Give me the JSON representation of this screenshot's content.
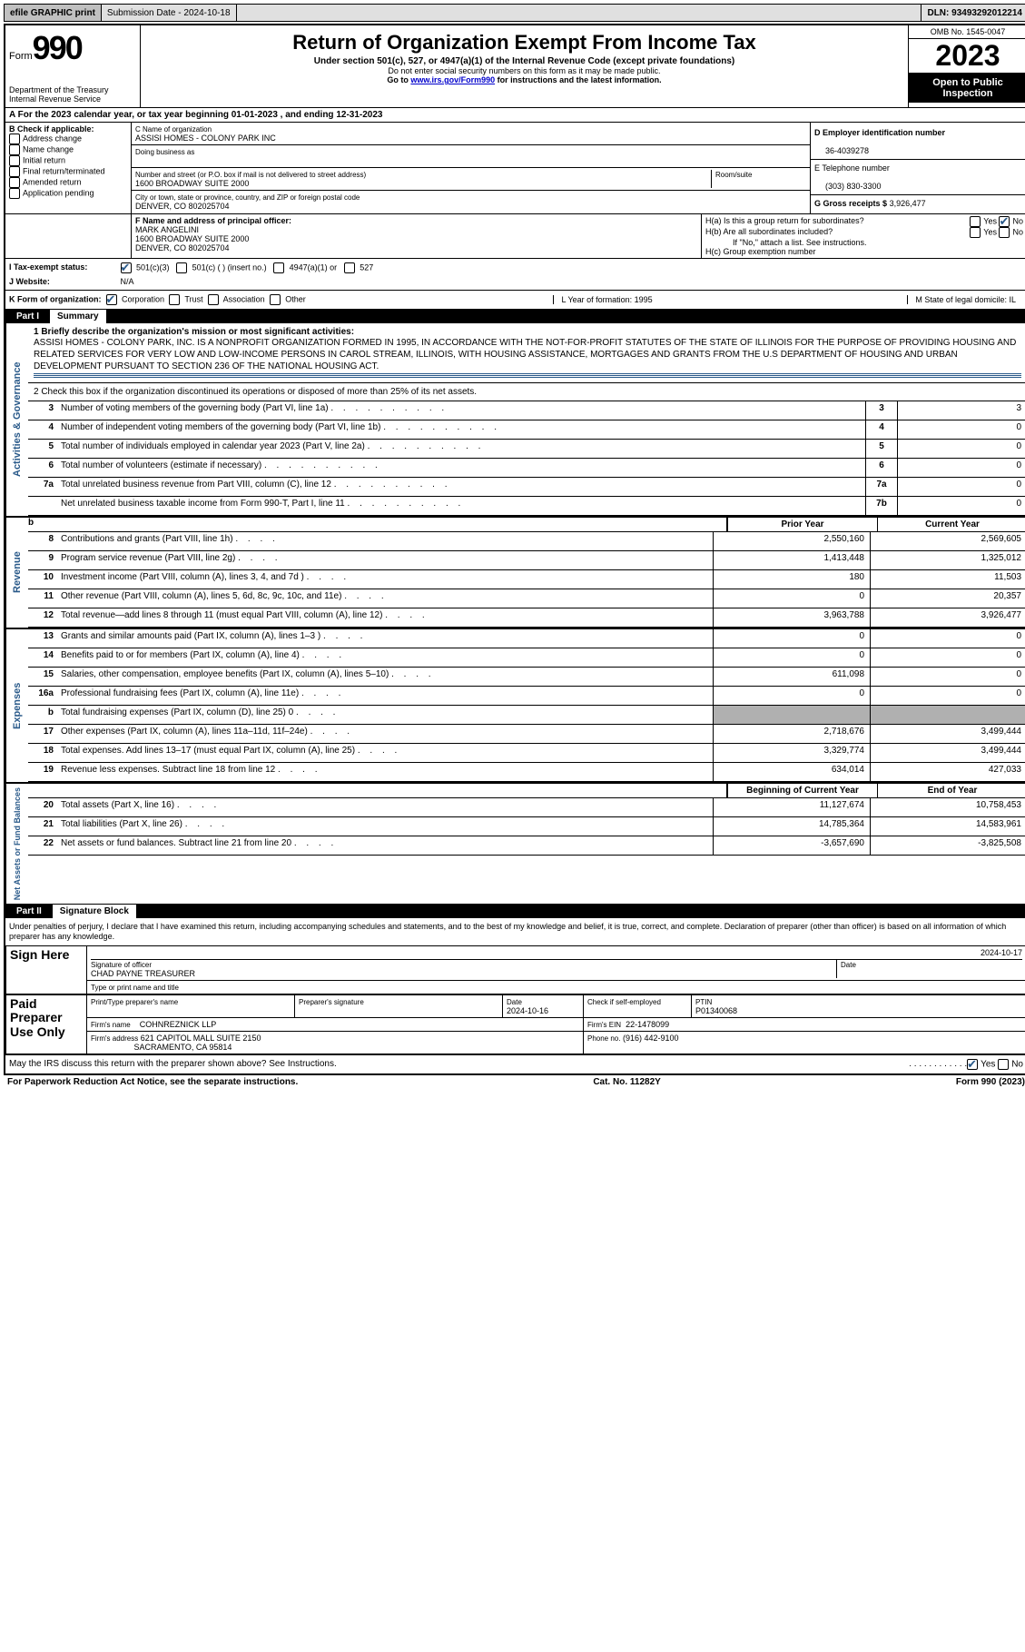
{
  "topbar": {
    "efile": "efile GRAPHIC print",
    "submission_label": "Submission Date - 2024-10-18",
    "dln": "DLN: 93493292012214"
  },
  "header": {
    "form_word": "Form",
    "form_num": "990",
    "dept": "Department of the Treasury\nInternal Revenue Service",
    "title": "Return of Organization Exempt From Income Tax",
    "subtitle": "Under section 501(c), 527, or 4947(a)(1) of the Internal Revenue Code (except private foundations)",
    "note1": "Do not enter social security numbers on this form as it may be made public.",
    "note2_pre": "Go to ",
    "note2_link": "www.irs.gov/Form990",
    "note2_post": " for instructions and the latest information.",
    "omb": "OMB No. 1545-0047",
    "year": "2023",
    "open": "Open to Public Inspection"
  },
  "row_a": {
    "text": "A For the 2023 calendar year, or tax year beginning 01-01-2023   , and ending 12-31-2023"
  },
  "col_b": {
    "title": "B Check if applicable:",
    "items": [
      "Address change",
      "Name change",
      "Initial return",
      "Final return/terminated",
      "Amended return",
      "Application pending"
    ]
  },
  "col_c": {
    "name_label": "C Name of organization",
    "name": "ASSISI HOMES - COLONY PARK INC",
    "dba_label": "Doing business as",
    "addr_label": "Number and street (or P.O. box if mail is not delivered to street address)",
    "addr": "1600 BROADWAY SUITE 2000",
    "room_label": "Room/suite",
    "city_label": "City or town, state or province, country, and ZIP or foreign postal code",
    "city": "DENVER, CO  802025704"
  },
  "col_d": {
    "ein_label": "D Employer identification number",
    "ein": "36-4039278",
    "phone_label": "E Telephone number",
    "phone": "(303) 830-3300",
    "gross_label": "G Gross receipts $",
    "gross": "3,926,477"
  },
  "row_f": {
    "label": "F Name and address of principal officer:",
    "name": "MARK ANGELINI",
    "addr1": "1600 BROADWAY SUITE 2000",
    "addr2": "DENVER, CO  802025704"
  },
  "row_h": {
    "ha": "H(a)  Is this a group return for subordinates?",
    "hb": "H(b)  Are all subordinates included?",
    "hb_note": "If \"No,\" attach a list. See instructions.",
    "hc": "H(c)  Group exemption number"
  },
  "row_i": {
    "label": "I  Tax-exempt status:",
    "opts": [
      "501(c)(3)",
      "501(c) (  ) (insert no.)",
      "4947(a)(1) or",
      "527"
    ]
  },
  "row_j": {
    "label": "J  Website:",
    "val": "N/A"
  },
  "row_k": {
    "label": "K Form of organization:",
    "opts": [
      "Corporation",
      "Trust",
      "Association",
      "Other"
    ],
    "l": "L Year of formation: 1995",
    "m": "M State of legal domicile: IL"
  },
  "part1": {
    "label": "Part I",
    "title": "Summary"
  },
  "summary": {
    "q1_label": "1  Briefly describe the organization's mission or most significant activities:",
    "q1_text": "ASSISI HOMES - COLONY PARK, INC. IS A NONPROFIT ORGANIZATION FORMED IN 1995, IN ACCORDANCE WITH THE NOT-FOR-PROFIT STATUTES OF THE STATE OF ILLINOIS FOR THE PURPOSE OF PROVIDING HOUSING AND RELATED SERVICES FOR VERY LOW AND LOW-INCOME PERSONS IN CAROL STREAM, ILLINOIS, WITH HOUSING ASSISTANCE, MORTGAGES AND GRANTS FROM THE U.S DEPARTMENT OF HOUSING AND URBAN DEVELOPMENT PURSUANT TO SECTION 236 OF THE NATIONAL HOUSING ACT.",
    "q2": "2  Check this box       if the organization discontinued its operations or disposed of more than 25% of its net assets.",
    "lines": [
      {
        "n": "3",
        "label": "Number of voting members of the governing body (Part VI, line 1a)",
        "box": "3",
        "val": "3"
      },
      {
        "n": "4",
        "label": "Number of independent voting members of the governing body (Part VI, line 1b)",
        "box": "4",
        "val": "0"
      },
      {
        "n": "5",
        "label": "Total number of individuals employed in calendar year 2023 (Part V, line 2a)",
        "box": "5",
        "val": "0"
      },
      {
        "n": "6",
        "label": "Total number of volunteers (estimate if necessary)",
        "box": "6",
        "val": "0"
      },
      {
        "n": "7a",
        "label": "Total unrelated business revenue from Part VIII, column (C), line 12",
        "box": "7a",
        "val": "0"
      },
      {
        "n": "",
        "label": "Net unrelated business taxable income from Form 990-T, Part I, line 11",
        "box": "7b",
        "val": "0"
      }
    ]
  },
  "revenue": {
    "vtab": "Revenue",
    "col1": "Prior Year",
    "col2": "Current Year",
    "rows": [
      {
        "n": "8",
        "label": "Contributions and grants (Part VIII, line 1h)",
        "v1": "2,550,160",
        "v2": "2,569,605"
      },
      {
        "n": "9",
        "label": "Program service revenue (Part VIII, line 2g)",
        "v1": "1,413,448",
        "v2": "1,325,012"
      },
      {
        "n": "10",
        "label": "Investment income (Part VIII, column (A), lines 3, 4, and 7d )",
        "v1": "180",
        "v2": "11,503"
      },
      {
        "n": "11",
        "label": "Other revenue (Part VIII, column (A), lines 5, 6d, 8c, 9c, 10c, and 11e)",
        "v1": "0",
        "v2": "20,357"
      },
      {
        "n": "12",
        "label": "Total revenue—add lines 8 through 11 (must equal Part VIII, column (A), line 12)",
        "v1": "3,963,788",
        "v2": "3,926,477"
      }
    ]
  },
  "expenses": {
    "vtab": "Expenses",
    "rows": [
      {
        "n": "13",
        "label": "Grants and similar amounts paid (Part IX, column (A), lines 1–3 )",
        "v1": "0",
        "v2": "0"
      },
      {
        "n": "14",
        "label": "Benefits paid to or for members (Part IX, column (A), line 4)",
        "v1": "0",
        "v2": "0"
      },
      {
        "n": "15",
        "label": "Salaries, other compensation, employee benefits (Part IX, column (A), lines 5–10)",
        "v1": "611,098",
        "v2": "0"
      },
      {
        "n": "16a",
        "label": "Professional fundraising fees (Part IX, column (A), line 11e)",
        "v1": "0",
        "v2": "0"
      },
      {
        "n": "b",
        "label": "Total fundraising expenses (Part IX, column (D), line 25) 0",
        "v1": "shaded",
        "v2": "shaded"
      },
      {
        "n": "17",
        "label": "Other expenses (Part IX, column (A), lines 11a–11d, 11f–24e)",
        "v1": "2,718,676",
        "v2": "3,499,444"
      },
      {
        "n": "18",
        "label": "Total expenses. Add lines 13–17 (must equal Part IX, column (A), line 25)",
        "v1": "3,329,774",
        "v2": "3,499,444"
      },
      {
        "n": "19",
        "label": "Revenue less expenses. Subtract line 18 from line 12",
        "v1": "634,014",
        "v2": "427,033"
      }
    ]
  },
  "netassets": {
    "vtab": "Net Assets or\nFund Balances",
    "col1": "Beginning of Current Year",
    "col2": "End of Year",
    "rows": [
      {
        "n": "20",
        "label": "Total assets (Part X, line 16)",
        "v1": "11,127,674",
        "v2": "10,758,453"
      },
      {
        "n": "21",
        "label": "Total liabilities (Part X, line 26)",
        "v1": "14,785,364",
        "v2": "14,583,961"
      },
      {
        "n": "22",
        "label": "Net assets or fund balances. Subtract line 21 from line 20",
        "v1": "-3,657,690",
        "v2": "-3,825,508"
      }
    ]
  },
  "part2": {
    "label": "Part II",
    "title": "Signature Block",
    "intro": "Under penalties of perjury, I declare that I have examined this return, including accompanying schedules and statements, and to the best of my knowledge and belief, it is true, correct, and complete. Declaration of preparer (other than officer) is based on all information of which preparer has any knowledge."
  },
  "sign": {
    "here": "Sign Here",
    "sig_label": "Signature of officer",
    "officer": "CHAD PAYNE  TREASURER",
    "type_label": "Type or print name and title",
    "date_label": "Date",
    "date": "2024-10-17"
  },
  "preparer": {
    "title": "Paid Preparer Use Only",
    "name_label": "Print/Type preparer's name",
    "sig_label": "Preparer's signature",
    "date_label": "Date",
    "date": "2024-10-16",
    "check_label": "Check        if self-employed",
    "ptin_label": "PTIN",
    "ptin": "P01340068",
    "firm_name_label": "Firm's name",
    "firm_name": "COHNREZNICK LLP",
    "firm_ein_label": "Firm's EIN",
    "firm_ein": "22-1478099",
    "firm_addr_label": "Firm's address",
    "firm_addr1": "621 CAPITOL MALL SUITE 2150",
    "firm_addr2": "SACRAMENTO, CA  95814",
    "phone_label": "Phone no.",
    "phone": "(916) 442-9100"
  },
  "discuss": "May the IRS discuss this return with the preparer shown above? See Instructions.",
  "footer": {
    "left": "For Paperwork Reduction Act Notice, see the separate instructions.",
    "mid": "Cat. No. 11282Y",
    "right": "Form 990 (2023)"
  },
  "vtab_gov": "Activities & Governance",
  "colors": {
    "accent": "#2a5a8a"
  }
}
